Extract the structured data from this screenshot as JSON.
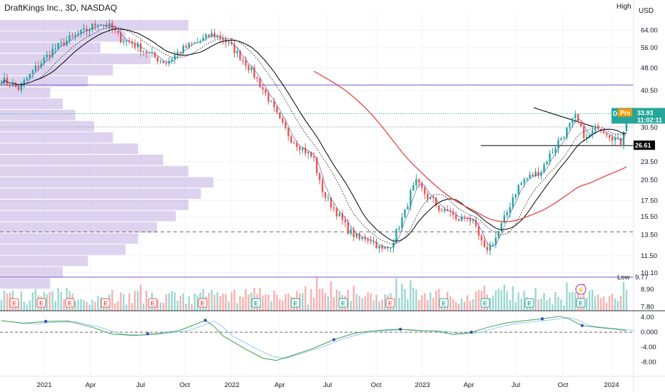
{
  "header": {
    "title": "DraftKings Inc., 3D, NASDAQ",
    "high_label": "High",
    "currency": "USD"
  },
  "colors": {
    "up": "#26a69a",
    "down": "#ef5350",
    "ma_slow": "#000000",
    "ma_red": "#e53935",
    "ma_dotted": "#333333",
    "purple_line": "#7e57c2",
    "volume_profile": "#b39ddb",
    "price_tag": "#26a69a",
    "pre_tag": "#ff9800"
  },
  "price_tags": {
    "current_label": "Pre",
    "current_value": "33.93",
    "countdown": "11:02:11",
    "level_value": "26.61",
    "low_label": "Low",
    "low_value": "9.77",
    "current_prefix": "D"
  },
  "chart_data": {
    "type": "candlestick",
    "x_tick_labels": [
      "2021",
      "Apr",
      "Jul",
      "Oct",
      "2022",
      "Apr",
      "Jul",
      "Oct",
      "2023",
      "Apr",
      "Jul",
      "Oct",
      "2024"
    ],
    "price_axis": {
      "ticks": [
        "64.00",
        "56.00",
        "48.00",
        "40.50",
        "30.50",
        "23.50",
        "20.50",
        "17.50",
        "15.50",
        "13.50",
        "11.50",
        "10.10",
        "8.90",
        "7.80"
      ],
      "scale": "log"
    },
    "oscillator_axis": {
      "ticks": [
        "4.00",
        "0.000",
        "-4.00",
        "-8.00"
      ]
    },
    "price_path": [
      [
        0,
        44
      ],
      [
        6,
        41
      ],
      [
        12,
        48
      ],
      [
        18,
        55
      ],
      [
        24,
        60
      ],
      [
        30,
        64
      ],
      [
        34,
        68
      ],
      [
        38,
        66
      ],
      [
        42,
        60
      ],
      [
        46,
        58
      ],
      [
        50,
        55
      ],
      [
        54,
        52
      ],
      [
        58,
        50
      ],
      [
        62,
        54
      ],
      [
        66,
        57
      ],
      [
        70,
        59
      ],
      [
        74,
        62
      ],
      [
        78,
        60
      ],
      [
        82,
        55
      ],
      [
        86,
        50
      ],
      [
        90,
        44
      ],
      [
        94,
        38
      ],
      [
        98,
        32
      ],
      [
        102,
        28
      ],
      [
        106,
        26
      ],
      [
        110,
        24
      ],
      [
        112,
        20
      ],
      [
        114,
        18
      ],
      [
        116,
        17
      ],
      [
        118,
        16
      ],
      [
        120,
        15
      ],
      [
        122,
        14
      ],
      [
        124,
        13.5
      ],
      [
        126,
        13
      ],
      [
        128,
        13.2
      ],
      [
        130,
        13
      ],
      [
        132,
        12.5
      ],
      [
        134,
        12
      ],
      [
        136,
        12.2
      ],
      [
        138,
        13
      ],
      [
        140,
        14.5
      ],
      [
        142,
        16
      ],
      [
        144,
        18.5
      ],
      [
        146,
        20
      ],
      [
        148,
        19
      ],
      [
        150,
        18
      ],
      [
        152,
        17.5
      ],
      [
        154,
        16.5
      ],
      [
        156,
        16
      ],
      [
        158,
        16.2
      ],
      [
        160,
        15
      ],
      [
        162,
        15.3
      ],
      [
        164,
        15.6
      ],
      [
        166,
        14.7
      ],
      [
        168,
        13.3
      ],
      [
        170,
        12
      ],
      [
        172,
        12.4
      ],
      [
        174,
        13.2
      ],
      [
        176,
        14.5
      ],
      [
        178,
        16
      ],
      [
        180,
        18
      ],
      [
        182,
        19.5
      ],
      [
        184,
        20.5
      ],
      [
        186,
        21
      ],
      [
        188,
        21.5
      ],
      [
        190,
        22
      ],
      [
        192,
        24
      ],
      [
        194,
        25.5
      ],
      [
        196,
        27.5
      ],
      [
        198,
        29
      ],
      [
        200,
        31
      ],
      [
        202,
        33
      ],
      [
        204,
        30
      ],
      [
        206,
        28
      ],
      [
        208,
        29.5
      ],
      [
        210,
        31
      ],
      [
        212,
        30
      ],
      [
        214,
        29
      ],
      [
        216,
        28
      ],
      [
        218,
        27
      ],
      [
        220,
        34
      ]
    ],
    "volume_profile": [
      0.3,
      0.2,
      0.16,
      0.24,
      0.18,
      0.14,
      0.08,
      0.1,
      0.12,
      0.15,
      0.18,
      0.22,
      0.26,
      0.3,
      0.34,
      0.32,
      0.3,
      0.28,
      0.25,
      0.22,
      0.2,
      0.14,
      0.1,
      0.08
    ],
    "oscillator_path": [
      [
        0,
        3.1
      ],
      [
        10,
        2.4
      ],
      [
        20,
        2.9
      ],
      [
        30,
        3.0
      ],
      [
        40,
        1.5
      ],
      [
        50,
        -0.5
      ],
      [
        60,
        -0.9
      ],
      [
        70,
        -0.4
      ],
      [
        80,
        0.4
      ],
      [
        88,
        2.2
      ],
      [
        92,
        3.2
      ],
      [
        96,
        1.5
      ],
      [
        100,
        -1.0
      ],
      [
        110,
        -4.5
      ],
      [
        118,
        -7.0
      ],
      [
        124,
        -7.6
      ],
      [
        130,
        -6.5
      ],
      [
        140,
        -4.5
      ],
      [
        150,
        -2.0
      ],
      [
        160,
        -0.2
      ],
      [
        170,
        0.5
      ],
      [
        180,
        0.8
      ],
      [
        188,
        0.4
      ],
      [
        196,
        0.3
      ],
      [
        204,
        -0.6
      ],
      [
        212,
        0.0
      ],
      [
        220,
        1.4
      ],
      [
        228,
        2.5
      ],
      [
        236,
        3.1
      ],
      [
        244,
        3.6
      ],
      [
        252,
        4.3
      ],
      [
        256,
        3.6
      ],
      [
        262,
        1.8
      ],
      [
        270,
        1.2
      ],
      [
        276,
        0.9
      ],
      [
        282,
        0.4
      ]
    ]
  }
}
